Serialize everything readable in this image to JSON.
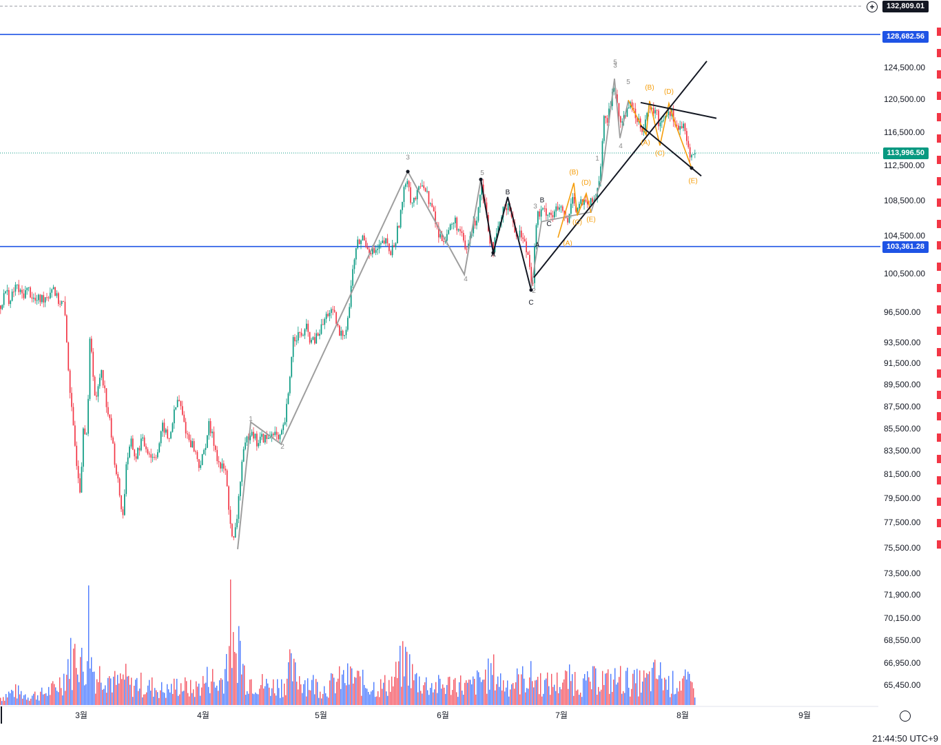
{
  "chart_data": {
    "type": "candlestick",
    "months": [
      {
        "label": "3월"
      },
      {
        "label": "4월"
      },
      {
        "label": "5월"
      },
      {
        "label": "6월"
      },
      {
        "label": "7월"
      },
      {
        "label": "8월"
      },
      {
        "label": "9월"
      }
    ],
    "y_ticks": [
      "124,500.00",
      "120,500.00",
      "116,500.00",
      "112,500.00",
      "108,500.00",
      "104,500.00",
      "100,500.00",
      "96,500.00",
      "93,500.00",
      "91,500.00",
      "89,500.00",
      "87,500.00",
      "85,500.00",
      "83,500.00",
      "81,500.00",
      "79,500.00",
      "77,500.00",
      "75,500.00",
      "73,500.00",
      "71,900.00",
      "70,150.00",
      "68,550.00",
      "66,950.00",
      "65,450.00"
    ],
    "horizontal_lines": [
      {
        "value": 128682.56,
        "label": "128,682.56",
        "color": "#1e53e5"
      },
      {
        "value": 103361.28,
        "label": "103,361.28",
        "color": "#1e53e5"
      }
    ],
    "current_price": {
      "value": 113996.5,
      "label": "113,996.50",
      "color": "#089981"
    },
    "crosshair_price": {
      "value": 132809.01,
      "label": "132,809.01"
    },
    "price_path": [
      [
        0,
        97200
      ],
      [
        8,
        98800
      ],
      [
        14,
        97500
      ],
      [
        22,
        99300
      ],
      [
        30,
        98200
      ],
      [
        40,
        98900
      ],
      [
        50,
        97600
      ],
      [
        60,
        97900
      ],
      [
        70,
        98400
      ],
      [
        76,
        99400
      ],
      [
        82,
        97800
      ],
      [
        92,
        97300
      ],
      [
        98,
        91500
      ],
      [
        104,
        86300
      ],
      [
        110,
        82800
      ],
      [
        116,
        80100
      ],
      [
        120,
        86000
      ],
      [
        126,
        84800
      ],
      [
        130,
        94600
      ],
      [
        138,
        87500
      ],
      [
        146,
        91200
      ],
      [
        152,
        88500
      ],
      [
        158,
        86200
      ],
      [
        164,
        83400
      ],
      [
        170,
        80900
      ],
      [
        178,
        77800
      ],
      [
        182,
        82400
      ],
      [
        190,
        84200
      ],
      [
        196,
        82800
      ],
      [
        204,
        84400
      ],
      [
        212,
        83800
      ],
      [
        220,
        82900
      ],
      [
        228,
        83500
      ],
      [
        236,
        85800
      ],
      [
        244,
        84300
      ],
      [
        250,
        86300
      ],
      [
        258,
        88300
      ],
      [
        266,
        86100
      ],
      [
        272,
        84700
      ],
      [
        280,
        83900
      ],
      [
        288,
        82300
      ],
      [
        294,
        82900
      ],
      [
        302,
        85800
      ],
      [
        310,
        84200
      ],
      [
        318,
        82100
      ],
      [
        326,
        81900
      ],
      [
        332,
        78400
      ],
      [
        337,
        75600
      ],
      [
        342,
        77200
      ],
      [
        350,
        82400
      ],
      [
        358,
        84600
      ],
      [
        364,
        85600
      ],
      [
        372,
        84200
      ],
      [
        380,
        84700
      ],
      [
        388,
        84500
      ],
      [
        396,
        85400
      ],
      [
        404,
        84200
      ],
      [
        412,
        85800
      ],
      [
        418,
        88600
      ],
      [
        424,
        93800
      ],
      [
        430,
        94300
      ],
      [
        436,
        94100
      ],
      [
        444,
        94800
      ],
      [
        452,
        93400
      ],
      [
        460,
        94100
      ],
      [
        468,
        95300
      ],
      [
        476,
        96600
      ],
      [
        484,
        96200
      ],
      [
        492,
        94200
      ],
      [
        500,
        94600
      ],
      [
        506,
        96800
      ],
      [
        512,
        101600
      ],
      [
        518,
        103600
      ],
      [
        526,
        104300
      ],
      [
        534,
        103200
      ],
      [
        542,
        102700
      ],
      [
        550,
        103200
      ],
      [
        558,
        103900
      ],
      [
        566,
        102600
      ],
      [
        574,
        104200
      ],
      [
        582,
        107600
      ],
      [
        590,
        111600
      ],
      [
        596,
        108300
      ],
      [
        604,
        108900
      ],
      [
        612,
        110800
      ],
      [
        620,
        108900
      ],
      [
        628,
        107200
      ],
      [
        636,
        104500
      ],
      [
        644,
        104200
      ],
      [
        652,
        105400
      ],
      [
        660,
        106100
      ],
      [
        668,
        104600
      ],
      [
        676,
        102700
      ],
      [
        684,
        105100
      ],
      [
        692,
        106900
      ],
      [
        698,
        110600
      ],
      [
        704,
        107800
      ],
      [
        710,
        104300
      ],
      [
        716,
        103200
      ],
      [
        724,
        105600
      ],
      [
        732,
        107900
      ],
      [
        738,
        108200
      ],
      [
        746,
        104800
      ],
      [
        754,
        104900
      ],
      [
        762,
        103400
      ],
      [
        768,
        101800
      ],
      [
        772,
        98800
      ],
      [
        778,
        106600
      ],
      [
        786,
        107200
      ],
      [
        794,
        107300
      ],
      [
        802,
        106800
      ],
      [
        810,
        107700
      ],
      [
        818,
        106800
      ],
      [
        824,
        105800
      ],
      [
        830,
        109600
      ],
      [
        836,
        107200
      ],
      [
        842,
        108400
      ],
      [
        850,
        107900
      ],
      [
        858,
        108200
      ],
      [
        864,
        108900
      ],
      [
        870,
        111600
      ],
      [
        876,
        117800
      ],
      [
        882,
        118100
      ],
      [
        888,
        121300
      ],
      [
        892,
        122600
      ],
      [
        896,
        118600
      ],
      [
        902,
        117700
      ],
      [
        908,
        118900
      ],
      [
        914,
        120700
      ],
      [
        920,
        118400
      ],
      [
        926,
        118200
      ],
      [
        932,
        116900
      ],
      [
        938,
        118700
      ],
      [
        944,
        118900
      ],
      [
        950,
        119400
      ],
      [
        956,
        117400
      ],
      [
        962,
        118400
      ],
      [
        970,
        119200
      ],
      [
        976,
        118600
      ],
      [
        984,
        116800
      ],
      [
        990,
        117400
      ],
      [
        996,
        115300
      ],
      [
        1000,
        114200
      ],
      [
        1004,
        113400
      ],
      [
        1008,
        113996
      ]
    ],
    "volume_profile": [
      [
        0,
        0.08
      ],
      [
        20,
        0.15
      ],
      [
        40,
        0.1
      ],
      [
        60,
        0.12
      ],
      [
        80,
        0.18
      ],
      [
        96,
        0.35
      ],
      [
        100,
        0.55
      ],
      [
        104,
        0.42
      ],
      [
        110,
        0.62
      ],
      [
        116,
        0.5
      ],
      [
        122,
        0.3
      ],
      [
        128,
        0.95
      ],
      [
        132,
        0.45
      ],
      [
        140,
        0.3
      ],
      [
        150,
        0.38
      ],
      [
        160,
        0.28
      ],
      [
        170,
        0.22
      ],
      [
        180,
        0.3
      ],
      [
        190,
        0.2
      ],
      [
        200,
        0.25
      ],
      [
        210,
        0.18
      ],
      [
        220,
        0.2
      ],
      [
        240,
        0.15
      ],
      [
        260,
        0.22
      ],
      [
        280,
        0.16
      ],
      [
        296,
        0.25
      ],
      [
        306,
        0.32
      ],
      [
        312,
        0.2
      ],
      [
        322,
        0.28
      ],
      [
        330,
        0.55
      ],
      [
        334,
        0.86
      ],
      [
        340,
        0.4
      ],
      [
        346,
        0.75
      ],
      [
        350,
        0.45
      ],
      [
        356,
        0.3
      ],
      [
        370,
        0.25
      ],
      [
        390,
        0.2
      ],
      [
        410,
        0.22
      ],
      [
        420,
        0.38
      ],
      [
        430,
        0.3
      ],
      [
        450,
        0.24
      ],
      [
        470,
        0.18
      ],
      [
        490,
        0.26
      ],
      [
        510,
        0.3
      ],
      [
        530,
        0.22
      ],
      [
        550,
        0.19
      ],
      [
        570,
        0.25
      ],
      [
        580,
        0.4
      ],
      [
        590,
        0.48
      ],
      [
        600,
        0.28
      ],
      [
        620,
        0.22
      ],
      [
        640,
        0.2
      ],
      [
        660,
        0.24
      ],
      [
        680,
        0.19
      ],
      [
        700,
        0.28
      ],
      [
        716,
        0.35
      ],
      [
        730,
        0.22
      ],
      [
        750,
        0.26
      ],
      [
        770,
        0.3
      ],
      [
        790,
        0.22
      ],
      [
        810,
        0.24
      ],
      [
        830,
        0.28
      ],
      [
        850,
        0.22
      ],
      [
        870,
        0.3
      ],
      [
        880,
        0.25
      ],
      [
        900,
        0.28
      ],
      [
        920,
        0.24
      ],
      [
        940,
        0.26
      ],
      [
        954,
        0.34
      ],
      [
        970,
        0.22
      ],
      [
        990,
        0.26
      ],
      [
        1008,
        0.18
      ]
    ],
    "wave_labels": [
      {
        "text": "3",
        "price": 113200,
        "x": 592,
        "color": "#8a8a8a"
      },
      {
        "text": "4",
        "price": 99700,
        "x": 676,
        "color": "#8a8a8a"
      },
      {
        "text": "5",
        "price": 111400,
        "x": 700,
        "color": "#8a8a8a"
      },
      {
        "text": "1",
        "price": 86200,
        "x": 364,
        "color": "#8a8a8a"
      },
      {
        "text": "2",
        "price": 83700,
        "x": 410,
        "color": "#8a8a8a"
      },
      {
        "text": "A",
        "price": 102300,
        "x": 716,
        "color": "#131722"
      },
      {
        "text": "B",
        "price": 109200,
        "x": 737,
        "color": "#131722"
      },
      {
        "text": "C",
        "price": 97300,
        "x": 771,
        "color": "#131722"
      },
      {
        "text": "2",
        "price": 98500,
        "x": 775,
        "color": "#8a8a8a"
      },
      {
        "text": "B",
        "price": 108300,
        "x": 787,
        "color": "#131722"
      },
      {
        "text": "C",
        "price": 105600,
        "x": 797,
        "color": "#131722"
      },
      {
        "text": "3",
        "price": 107600,
        "x": 777,
        "color": "#8a8a8a"
      },
      {
        "text": "A",
        "price": 103300,
        "x": 780,
        "color": "#131722"
      },
      {
        "text": "(B)",
        "price": 111500,
        "x": 833,
        "color": "#f59d0a"
      },
      {
        "text": "(D)",
        "price": 110300,
        "x": 851,
        "color": "#f59d0a"
      },
      {
        "text": "(C)",
        "price": 105800,
        "x": 838,
        "color": "#f59d0a"
      },
      {
        "text": "(E)",
        "price": 106100,
        "x": 858,
        "color": "#f59d0a"
      },
      {
        "text": "(A)",
        "price": 103500,
        "x": 824,
        "color": "#f59d0a"
      },
      {
        "text": "1",
        "price": 113100,
        "x": 867,
        "color": "#8a8a8a"
      },
      {
        "text": "5",
        "price": 124900,
        "x": 893,
        "color": "#8a8a8a"
      },
      {
        "text": "3",
        "price": 124500,
        "x": 893,
        "color": "#8a8a8a"
      },
      {
        "text": "5",
        "price": 122400,
        "x": 912,
        "color": "#8a8a8a"
      },
      {
        "text": "4",
        "price": 114600,
        "x": 901,
        "color": "#8a8a8a"
      },
      {
        "text": "(B)",
        "price": 121700,
        "x": 943,
        "color": "#f59d0a"
      },
      {
        "text": "(D)",
        "price": 121200,
        "x": 971,
        "color": "#f59d0a"
      },
      {
        "text": "(A)",
        "price": 115000,
        "x": 937,
        "color": "#f59d0a"
      },
      {
        "text": "(C)",
        "price": 113700,
        "x": 958,
        "color": "#f59d0a"
      },
      {
        "text": "(E)",
        "price": 110500,
        "x": 1006,
        "color": "#f59d0a"
      }
    ],
    "time_label": "21:44:50 UTC+9"
  }
}
